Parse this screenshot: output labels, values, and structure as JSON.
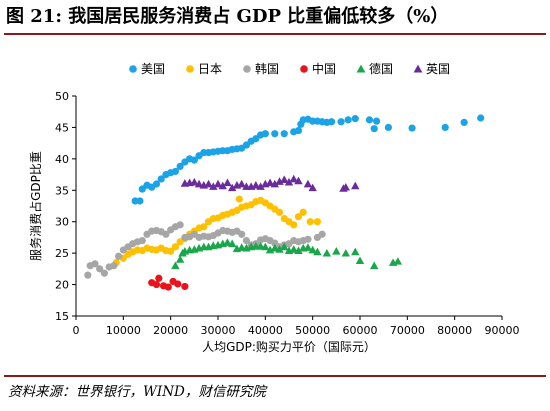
{
  "figure": {
    "title": "图 21: 我国居民服务消费占 GDP 比重偏低较多（%）",
    "source": "资料来源：世界银行，WIND，财信研究院"
  },
  "colors": {
    "美国": "#1aa3e6",
    "日本": "#ffc000",
    "韩国": "#a6a6a6",
    "中国": "#e8141b",
    "德国": "#1aa64a",
    "英国": "#6a2c9b",
    "rule": "#8b1a1a"
  },
  "chart_data": {
    "type": "scatter",
    "title": "",
    "xlabel": "人均GDP:购买力平价（国际元）",
    "ylabel": "服务消费占GDP比重",
    "xlim": [
      0,
      90000
    ],
    "ylim": [
      15,
      50
    ],
    "xticks": [
      0,
      10000,
      20000,
      30000,
      40000,
      50000,
      60000,
      70000,
      80000,
      90000
    ],
    "yticks": [
      15,
      20,
      25,
      30,
      35,
      40,
      45,
      50
    ],
    "grid": false,
    "legend_position": "top",
    "series": [
      {
        "name": "美国",
        "marker": "circle",
        "points": [
          [
            12500,
            33.3
          ],
          [
            13500,
            33.3
          ],
          [
            14000,
            35.2
          ],
          [
            15000,
            35.8
          ],
          [
            16000,
            35.5
          ],
          [
            17000,
            36.0
          ],
          [
            18000,
            36.8
          ],
          [
            19000,
            37.5
          ],
          [
            20000,
            37.8
          ],
          [
            21000,
            38.0
          ],
          [
            22000,
            38.8
          ],
          [
            23000,
            39.5
          ],
          [
            24000,
            40.0
          ],
          [
            25000,
            39.8
          ],
          [
            26000,
            40.5
          ],
          [
            27000,
            41.0
          ],
          [
            28000,
            41.0
          ],
          [
            29000,
            41.1
          ],
          [
            30000,
            41.2
          ],
          [
            31000,
            41.3
          ],
          [
            32000,
            41.3
          ],
          [
            33000,
            41.5
          ],
          [
            34000,
            41.6
          ],
          [
            35000,
            41.7
          ],
          [
            36000,
            42.2
          ],
          [
            37000,
            42.8
          ],
          [
            38000,
            43.2
          ],
          [
            39000,
            43.8
          ],
          [
            40000,
            44.0
          ],
          [
            42000,
            44.0
          ],
          [
            44000,
            44.0
          ],
          [
            46000,
            44.3
          ],
          [
            47000,
            44.5
          ],
          [
            47500,
            45.5
          ],
          [
            48000,
            46.2
          ],
          [
            49000,
            46.3
          ],
          [
            50000,
            46.0
          ],
          [
            51000,
            46.0
          ],
          [
            52000,
            45.9
          ],
          [
            53000,
            45.8
          ],
          [
            54000,
            45.9
          ],
          [
            56000,
            45.9
          ],
          [
            57500,
            46.2
          ],
          [
            59000,
            46.4
          ],
          [
            62000,
            46.2
          ],
          [
            63000,
            44.8
          ],
          [
            63500,
            46.0
          ],
          [
            66000,
            45.0
          ],
          [
            71000,
            44.9
          ],
          [
            78000,
            45.0
          ],
          [
            82000,
            45.8
          ],
          [
            85500,
            46.5
          ]
        ]
      },
      {
        "name": "日本",
        "marker": "circle",
        "points": [
          [
            8500,
            23.5
          ],
          [
            10000,
            24.2
          ],
          [
            11000,
            24.8
          ],
          [
            12000,
            25.2
          ],
          [
            13000,
            25.5
          ],
          [
            14000,
            25.4
          ],
          [
            15000,
            25.8
          ],
          [
            16000,
            25.6
          ],
          [
            17000,
            25.5
          ],
          [
            18000,
            25.8
          ],
          [
            19000,
            25.4
          ],
          [
            20000,
            25.3
          ],
          [
            21000,
            26.0
          ],
          [
            22000,
            26.8
          ],
          [
            23000,
            27.3
          ],
          [
            24000,
            28.0
          ],
          [
            25000,
            28.5
          ],
          [
            26000,
            29.0
          ],
          [
            27000,
            29.2
          ],
          [
            28000,
            30.0
          ],
          [
            29000,
            30.5
          ],
          [
            30000,
            30.6
          ],
          [
            31000,
            31.0
          ],
          [
            32000,
            31.2
          ],
          [
            33000,
            31.5
          ],
          [
            34000,
            31.8
          ],
          [
            34500,
            33.6
          ],
          [
            35000,
            32.3
          ],
          [
            36000,
            32.5
          ],
          [
            37000,
            32.7
          ],
          [
            38000,
            33.2
          ],
          [
            39000,
            33.4
          ],
          [
            40000,
            33.0
          ],
          [
            41000,
            32.5
          ],
          [
            42000,
            32.0
          ],
          [
            43000,
            31.5
          ],
          [
            44000,
            30.5
          ],
          [
            45000,
            30.0
          ],
          [
            46000,
            29.5
          ],
          [
            47000,
            30.8
          ],
          [
            48000,
            31.5
          ],
          [
            49500,
            30.0
          ],
          [
            51000,
            30.0
          ]
        ]
      },
      {
        "name": "韩国",
        "marker": "circle",
        "points": [
          [
            2500,
            21.5
          ],
          [
            3000,
            23.0
          ],
          [
            4000,
            23.3
          ],
          [
            5000,
            22.5
          ],
          [
            6000,
            21.8
          ],
          [
            7000,
            22.8
          ],
          [
            8000,
            23.0
          ],
          [
            9000,
            24.5
          ],
          [
            10000,
            25.5
          ],
          [
            11000,
            26.0
          ],
          [
            12000,
            26.5
          ],
          [
            13000,
            26.8
          ],
          [
            14000,
            27.0
          ],
          [
            15000,
            28.0
          ],
          [
            16000,
            28.5
          ],
          [
            17000,
            28.6
          ],
          [
            18000,
            28.4
          ],
          [
            19000,
            28.0
          ],
          [
            20000,
            28.7
          ],
          [
            21000,
            29.2
          ],
          [
            22000,
            29.5
          ],
          [
            23000,
            27.5
          ],
          [
            24000,
            27.6
          ],
          [
            25000,
            28.0
          ],
          [
            26000,
            27.5
          ],
          [
            27000,
            27.7
          ],
          [
            28000,
            27.6
          ],
          [
            29000,
            27.8
          ],
          [
            30000,
            28.2
          ],
          [
            31000,
            28.6
          ],
          [
            32000,
            28.5
          ],
          [
            33000,
            28.3
          ],
          [
            34000,
            28.5
          ],
          [
            35000,
            28.0
          ],
          [
            36000,
            27.0
          ],
          [
            37000,
            26.3
          ],
          [
            38000,
            26.5
          ],
          [
            39000,
            27.1
          ],
          [
            40000,
            27.3
          ],
          [
            41000,
            27.0
          ],
          [
            42000,
            26.6
          ],
          [
            43000,
            26.0
          ],
          [
            44000,
            26.3
          ],
          [
            45000,
            26.5
          ],
          [
            46000,
            27.0
          ],
          [
            47000,
            26.8
          ],
          [
            48000,
            27.0
          ],
          [
            49000,
            27.2
          ],
          [
            51000,
            27.5
          ],
          [
            52000,
            28.0
          ]
        ]
      },
      {
        "name": "中国",
        "marker": "circle",
        "points": [
          [
            16000,
            20.3
          ],
          [
            17000,
            20.0
          ],
          [
            17500,
            21.0
          ],
          [
            18500,
            19.8
          ],
          [
            19500,
            19.6
          ],
          [
            20500,
            20.5
          ],
          [
            21500,
            20.1
          ],
          [
            23000,
            19.7
          ]
        ]
      },
      {
        "name": "德国",
        "marker": "triangle",
        "points": [
          [
            21000,
            23.0
          ],
          [
            22000,
            24.0
          ],
          [
            22500,
            25.0
          ],
          [
            23000,
            25.3
          ],
          [
            24000,
            25.5
          ],
          [
            25000,
            25.6
          ],
          [
            26000,
            25.8
          ],
          [
            27000,
            26.0
          ],
          [
            28000,
            26.0
          ],
          [
            29000,
            26.2
          ],
          [
            30000,
            26.3
          ],
          [
            31000,
            26.5
          ],
          [
            32000,
            26.7
          ],
          [
            33000,
            26.5
          ],
          [
            34000,
            25.7
          ],
          [
            35000,
            25.9
          ],
          [
            36000,
            25.8
          ],
          [
            37000,
            26.0
          ],
          [
            38000,
            26.1
          ],
          [
            39000,
            26.1
          ],
          [
            40000,
            26.0
          ],
          [
            41000,
            25.5
          ],
          [
            42000,
            25.8
          ],
          [
            43000,
            25.6
          ],
          [
            44000,
            26.0
          ],
          [
            45000,
            25.4
          ],
          [
            46000,
            25.6
          ],
          [
            47000,
            25.4
          ],
          [
            48000,
            25.8
          ],
          [
            49000,
            25.9
          ],
          [
            50000,
            25.5
          ],
          [
            51000,
            25.2
          ],
          [
            53000,
            25.0
          ],
          [
            55000,
            25.3
          ],
          [
            57000,
            25.0
          ],
          [
            59000,
            25.2
          ],
          [
            60000,
            23.8
          ],
          [
            63000,
            23.0
          ],
          [
            67000,
            23.5
          ],
          [
            68000,
            23.7
          ]
        ]
      },
      {
        "name": "英国",
        "marker": "triangle",
        "points": [
          [
            23000,
            36.1
          ],
          [
            24000,
            36.2
          ],
          [
            25000,
            36.3
          ],
          [
            26000,
            36.0
          ],
          [
            27000,
            35.8
          ],
          [
            28000,
            36.0
          ],
          [
            29000,
            35.6
          ],
          [
            30000,
            36.0
          ],
          [
            31000,
            35.7
          ],
          [
            32000,
            36.2
          ],
          [
            33000,
            35.4
          ],
          [
            34000,
            35.8
          ],
          [
            35000,
            36.0
          ],
          [
            36000,
            35.6
          ],
          [
            37000,
            35.6
          ],
          [
            38000,
            35.8
          ],
          [
            39000,
            35.6
          ],
          [
            40000,
            36.0
          ],
          [
            41000,
            36.2
          ],
          [
            42000,
            36.0
          ],
          [
            43000,
            36.4
          ],
          [
            44000,
            36.7
          ],
          [
            45000,
            36.3
          ],
          [
            46000,
            36.8
          ],
          [
            47000,
            36.5
          ],
          [
            49000,
            36.0
          ],
          [
            50000,
            35.4
          ],
          [
            56500,
            35.3
          ],
          [
            57000,
            35.5
          ],
          [
            59000,
            35.7
          ]
        ]
      }
    ]
  }
}
